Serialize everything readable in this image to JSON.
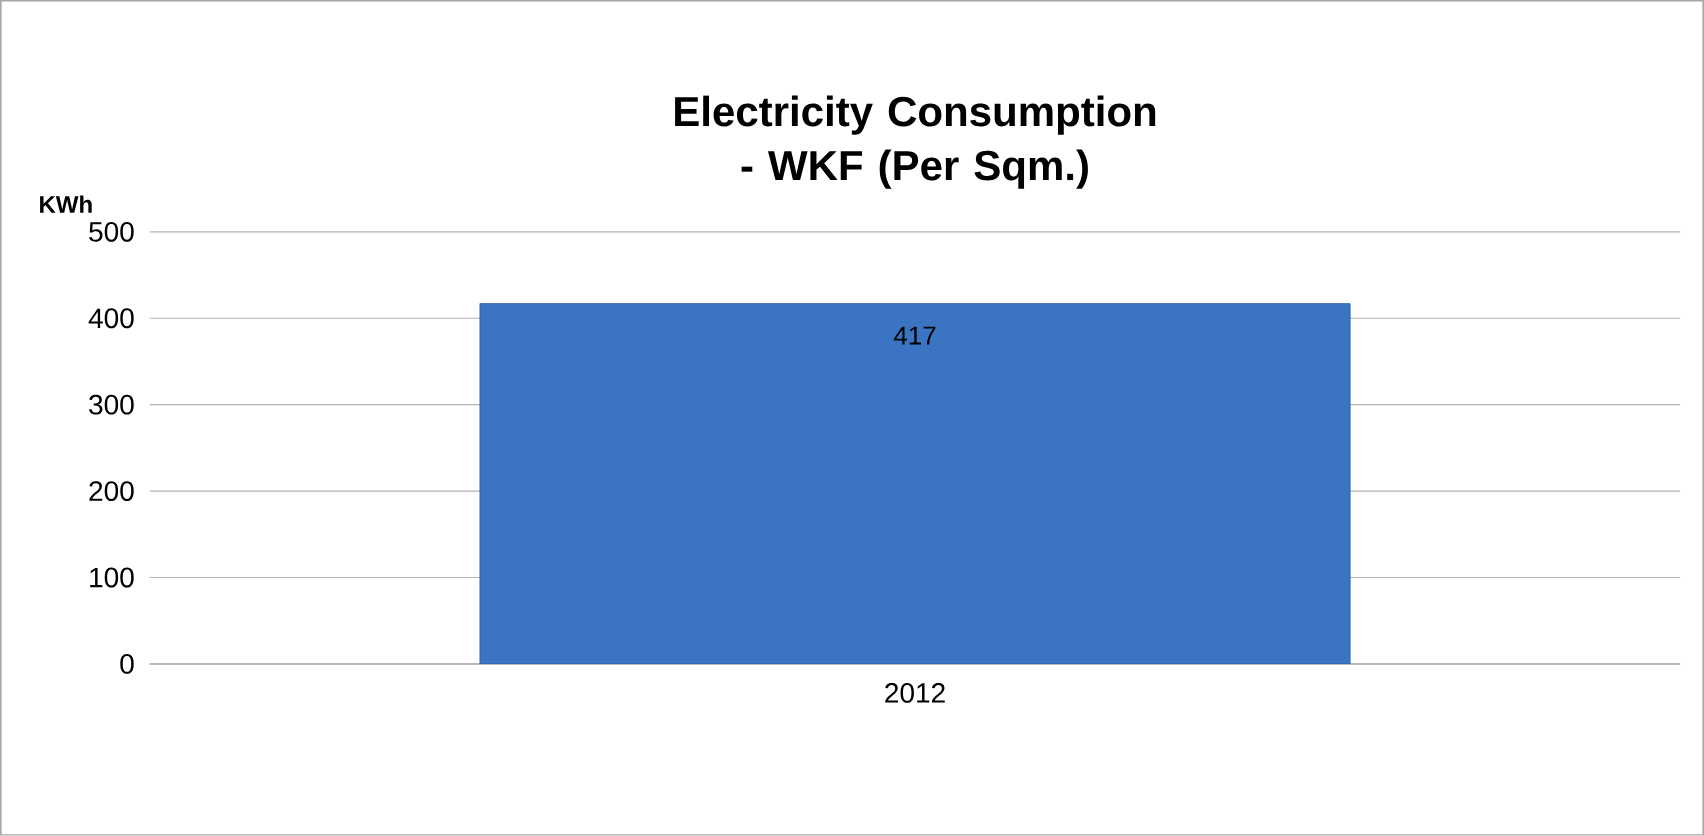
{
  "chart_data": {
    "type": "bar",
    "title": "Electricity Consumption - WKF (Per Sqm.)",
    "ylabel": "KWh",
    "categories": [
      "2012"
    ],
    "values": [
      417
    ],
    "value_labels": [
      "417"
    ],
    "color": "#3a74c2",
    "ylim": [
      0,
      500
    ],
    "yticks": [
      0,
      100,
      200,
      300,
      400,
      500
    ],
    "grid": "y"
  }
}
